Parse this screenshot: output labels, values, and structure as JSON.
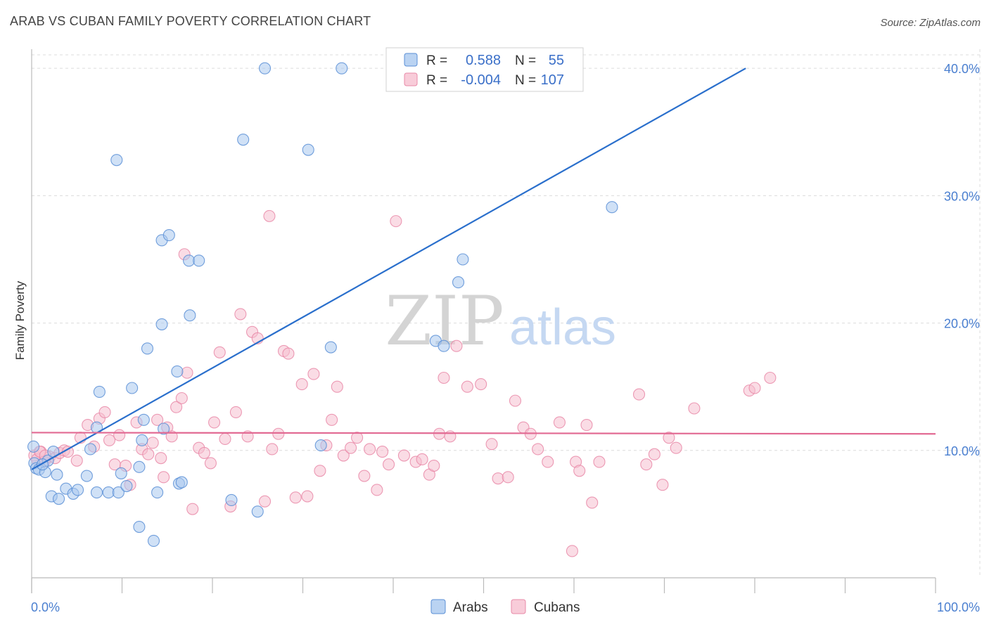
{
  "title": "ARAB VS CUBAN FAMILY POVERTY CORRELATION CHART",
  "source": "Source: ZipAtlas.com",
  "watermark": {
    "zip": "ZIP",
    "atlas": "atlas"
  },
  "legend": {
    "rows": [
      {
        "r_label": "R =",
        "r_value": "0.588",
        "n_label": "N =",
        "n_value": "55"
      },
      {
        "r_label": "R =",
        "r_value": "-0.004",
        "n_label": "N =",
        "n_value": "107"
      }
    ]
  },
  "bottom_legend": [
    "Arabs",
    "Cubans"
  ],
  "colors": {
    "arabs_fill": "#a9c8ef",
    "arabs_stroke": "#5b8fd6",
    "arabs_line": "#2a6fcc",
    "cubans_fill": "#f6bfd0",
    "cubans_stroke": "#e98aa8",
    "cubans_line": "#e26a93",
    "tick_text": "#4a7fd0",
    "grid": "#dcdcdc"
  },
  "chart_data": {
    "type": "scatter",
    "title": "ARAB VS CUBAN FAMILY POVERTY CORRELATION CHART",
    "xlabel": "",
    "ylabel": "Family Poverty",
    "xlim": [
      0,
      100
    ],
    "ylim": [
      0,
      41.5
    ],
    "x_tick_labels": [
      "0.0%",
      "100.0%"
    ],
    "y_ticks": [
      10,
      20,
      30,
      40
    ],
    "y_tick_labels": [
      "10.0%",
      "20.0%",
      "30.0%",
      "40.0%"
    ],
    "grid": true,
    "legend_position": "top-center",
    "series": [
      {
        "name": "Arabs",
        "r": 0.588,
        "n": 55,
        "trend": {
          "x": [
            0,
            79
          ],
          "y": [
            8.5,
            40.0
          ]
        },
        "points": [
          [
            0.2,
            10.3
          ],
          [
            0.3,
            9.0
          ],
          [
            0.5,
            8.6
          ],
          [
            0.8,
            8.5
          ],
          [
            1.5,
            8.3
          ],
          [
            2.8,
            8.1
          ],
          [
            1.8,
            9.2
          ],
          [
            2.4,
            9.9
          ],
          [
            3.8,
            7.0
          ],
          [
            2.2,
            6.4
          ],
          [
            3.0,
            6.2
          ],
          [
            4.6,
            6.6
          ],
          [
            5.1,
            6.9
          ],
          [
            6.1,
            8.0
          ],
          [
            7.2,
            6.7
          ],
          [
            8.5,
            6.7
          ],
          [
            9.6,
            6.7
          ],
          [
            10.5,
            7.2
          ],
          [
            11.9,
            4.0
          ],
          [
            13.5,
            2.9
          ],
          [
            13.9,
            6.7
          ],
          [
            16.3,
            7.4
          ],
          [
            16.6,
            7.5
          ],
          [
            9.9,
            8.2
          ],
          [
            11.9,
            8.7
          ],
          [
            12.2,
            10.8
          ],
          [
            14.6,
            11.7
          ],
          [
            12.4,
            12.4
          ],
          [
            7.2,
            11.8
          ],
          [
            6.5,
            10.1
          ],
          [
            7.5,
            14.6
          ],
          [
            11.1,
            14.9
          ],
          [
            12.8,
            18.0
          ],
          [
            16.1,
            16.2
          ],
          [
            14.4,
            19.9
          ],
          [
            17.5,
            20.6
          ],
          [
            14.4,
            26.5
          ],
          [
            15.2,
            26.9
          ],
          [
            17.4,
            24.9
          ],
          [
            18.5,
            24.9
          ],
          [
            9.4,
            32.8
          ],
          [
            23.4,
            34.4
          ],
          [
            25.8,
            40.0
          ],
          [
            30.6,
            33.6
          ],
          [
            34.3,
            40.0
          ],
          [
            33.1,
            18.1
          ],
          [
            32.0,
            10.4
          ],
          [
            22.1,
            6.1
          ],
          [
            25.0,
            5.2
          ],
          [
            44.7,
            18.6
          ],
          [
            45.6,
            18.2
          ],
          [
            47.2,
            23.2
          ],
          [
            47.7,
            25.0
          ],
          [
            64.2,
            29.1
          ],
          [
            1.2,
            8.9
          ]
        ]
      },
      {
        "name": "Cubans",
        "r": -0.004,
        "n": 107,
        "trend": {
          "x": [
            0,
            100
          ],
          "y": [
            11.4,
            11.3
          ]
        },
        "points": [
          [
            0.3,
            9.6
          ],
          [
            0.6,
            9.3
          ],
          [
            1.0,
            9.9
          ],
          [
            1.4,
            9.1
          ],
          [
            2.0,
            9.5
          ],
          [
            2.6,
            9.4
          ],
          [
            3.1,
            9.8
          ],
          [
            3.6,
            10.0
          ],
          [
            4.0,
            9.9
          ],
          [
            5.0,
            9.2
          ],
          [
            5.4,
            11.0
          ],
          [
            6.2,
            12.0
          ],
          [
            6.9,
            10.3
          ],
          [
            7.5,
            12.5
          ],
          [
            8.1,
            13.0
          ],
          [
            8.6,
            10.8
          ],
          [
            9.2,
            8.9
          ],
          [
            9.7,
            11.2
          ],
          [
            10.4,
            8.8
          ],
          [
            10.9,
            7.3
          ],
          [
            11.6,
            12.2
          ],
          [
            12.2,
            10.1
          ],
          [
            12.9,
            9.7
          ],
          [
            13.4,
            10.6
          ],
          [
            13.9,
            12.4
          ],
          [
            14.3,
            9.4
          ],
          [
            14.6,
            7.9
          ],
          [
            15.0,
            11.8
          ],
          [
            15.5,
            11.1
          ],
          [
            16.0,
            13.4
          ],
          [
            16.6,
            14.1
          ],
          [
            17.2,
            16.1
          ],
          [
            17.8,
            5.4
          ],
          [
            18.5,
            10.2
          ],
          [
            19.1,
            9.8
          ],
          [
            19.8,
            9.0
          ],
          [
            20.2,
            12.2
          ],
          [
            20.8,
            17.7
          ],
          [
            21.4,
            10.9
          ],
          [
            22.0,
            5.6
          ],
          [
            22.6,
            13.0
          ],
          [
            23.1,
            20.7
          ],
          [
            23.9,
            11.1
          ],
          [
            24.4,
            19.3
          ],
          [
            25.0,
            18.8
          ],
          [
            25.8,
            6.0
          ],
          [
            26.6,
            10.1
          ],
          [
            27.3,
            11.3
          ],
          [
            27.9,
            17.8
          ],
          [
            28.4,
            17.6
          ],
          [
            29.2,
            6.3
          ],
          [
            29.9,
            15.2
          ],
          [
            30.5,
            6.4
          ],
          [
            31.2,
            16.0
          ],
          [
            31.9,
            8.4
          ],
          [
            32.6,
            10.4
          ],
          [
            33.2,
            12.4
          ],
          [
            33.8,
            15.0
          ],
          [
            34.5,
            9.6
          ],
          [
            35.3,
            10.2
          ],
          [
            36.0,
            11.0
          ],
          [
            36.8,
            8.0
          ],
          [
            37.4,
            10.1
          ],
          [
            38.2,
            6.9
          ],
          [
            38.8,
            9.9
          ],
          [
            39.5,
            8.9
          ],
          [
            40.3,
            28.0
          ],
          [
            41.2,
            9.6
          ],
          [
            42.5,
            9.1
          ],
          [
            43.2,
            9.3
          ],
          [
            44.0,
            8.1
          ],
          [
            44.5,
            8.8
          ],
          [
            45.1,
            11.3
          ],
          [
            45.6,
            15.7
          ],
          [
            46.3,
            11.1
          ],
          [
            47.0,
            18.2
          ],
          [
            48.2,
            15.0
          ],
          [
            49.7,
            15.2
          ],
          [
            50.9,
            10.5
          ],
          [
            51.6,
            7.8
          ],
          [
            52.7,
            7.9
          ],
          [
            53.5,
            13.9
          ],
          [
            54.4,
            11.8
          ],
          [
            55.2,
            11.3
          ],
          [
            56.0,
            10.1
          ],
          [
            57.1,
            9.1
          ],
          [
            58.4,
            12.2
          ],
          [
            59.8,
            2.1
          ],
          [
            60.2,
            9.1
          ],
          [
            60.6,
            8.4
          ],
          [
            61.4,
            12.0
          ],
          [
            62.0,
            5.9
          ],
          [
            62.8,
            9.1
          ],
          [
            67.2,
            14.4
          ],
          [
            68.0,
            8.9
          ],
          [
            68.9,
            9.7
          ],
          [
            69.8,
            7.3
          ],
          [
            70.5,
            11.0
          ],
          [
            71.3,
            10.2
          ],
          [
            73.3,
            13.3
          ],
          [
            79.4,
            14.7
          ],
          [
            80.0,
            14.9
          ],
          [
            81.7,
            15.7
          ],
          [
            26.3,
            28.4
          ],
          [
            16.9,
            25.4
          ],
          [
            0.9,
            9.9
          ],
          [
            1.5,
            9.6
          ]
        ]
      }
    ]
  }
}
